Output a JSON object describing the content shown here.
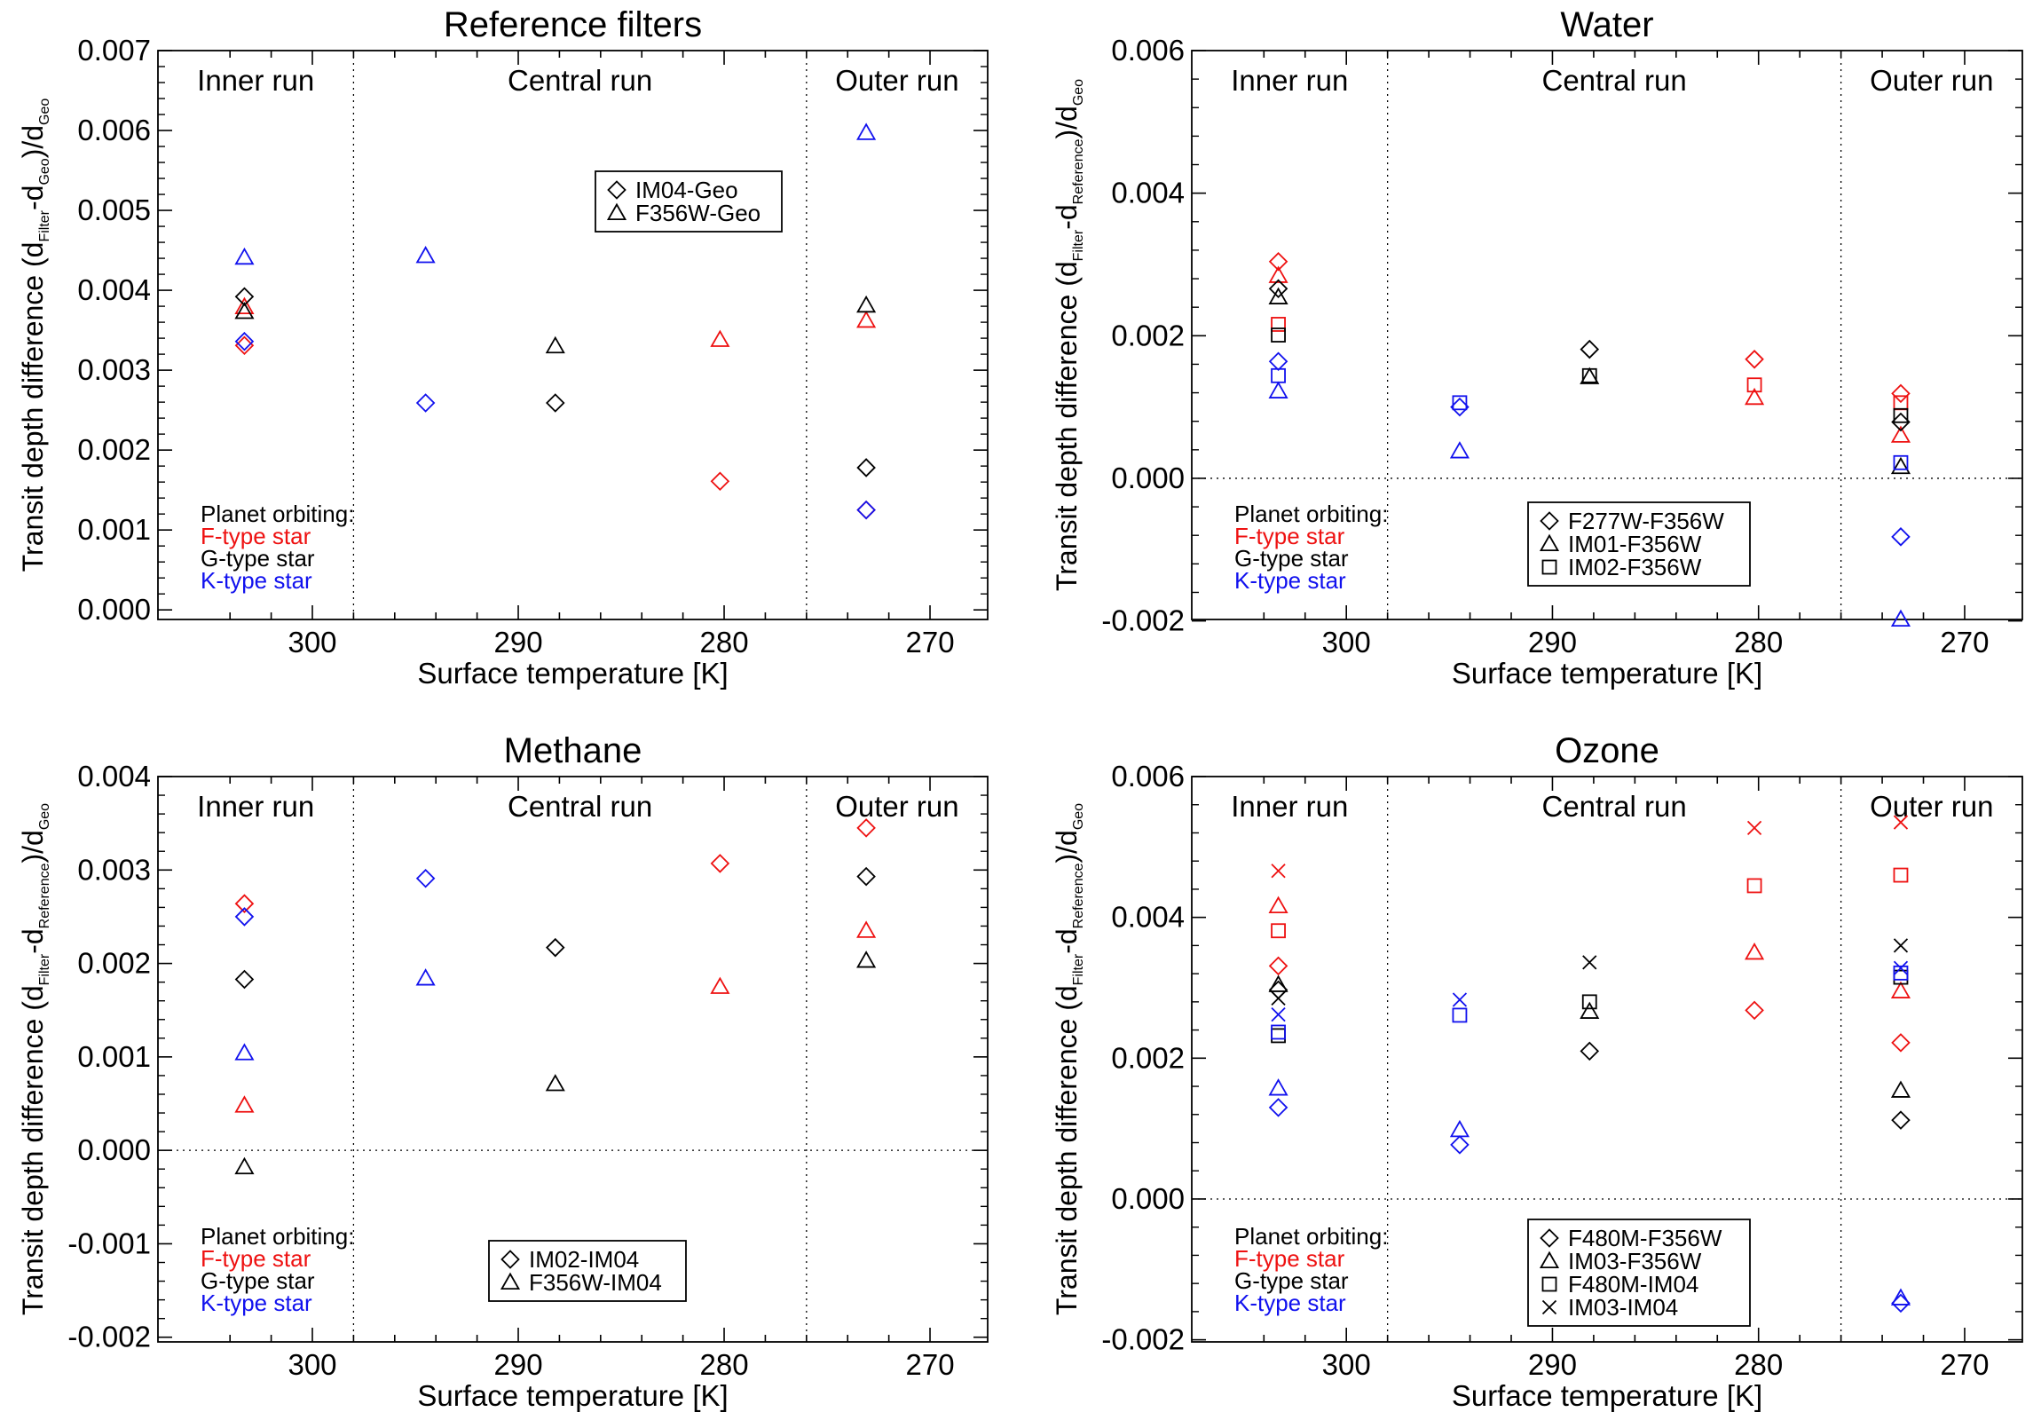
{
  "colors": {
    "F": "#ee1111",
    "G": "#000000",
    "K": "#1111ee"
  },
  "shared": {
    "xlabel": "Surface temperature [K]",
    "xlim": [
      307.5,
      267.2
    ],
    "xticks": [
      300,
      290,
      280,
      270
    ],
    "run_boundaries": [
      298,
      276
    ],
    "run_labels": [
      "Inner run",
      "Central run",
      "Outer run"
    ],
    "star_legend": {
      "title": "Planet orbiting:",
      "items": [
        {
          "label": "F-type star",
          "color": "#ee1111"
        },
        {
          "label": "G-type star",
          "color": "#000000"
        },
        {
          "label": "K-type star",
          "color": "#1111ee"
        }
      ]
    }
  },
  "chart_data": [
    {
      "type": "scatter",
      "title": "Reference filters",
      "ylabel": {
        "prefix": "Transit depth difference (d",
        "sub1": "Filter",
        "mid": "-d",
        "sub2": "Geo",
        "close": ")/d",
        "sub3": "Geo"
      },
      "ylim": [
        -0.00012,
        0.007
      ],
      "yticks": [
        "0.000",
        "0.001",
        "0.002",
        "0.003",
        "0.004",
        "0.005",
        "0.006",
        "0.007"
      ],
      "zero_line": false,
      "marker_legend": [
        {
          "marker": "diamond",
          "label": "IM04-Geo"
        },
        {
          "marker": "triangle",
          "label": "F356W-Geo"
        }
      ],
      "points": [
        {
          "x": 303.3,
          "y": 0.00331,
          "marker": "diamond",
          "star": "F"
        },
        {
          "x": 303.3,
          "y": 0.00379,
          "marker": "triangle",
          "star": "F"
        },
        {
          "x": 303.3,
          "y": 0.00392,
          "marker": "diamond",
          "star": "G"
        },
        {
          "x": 303.3,
          "y": 0.00373,
          "marker": "triangle",
          "star": "G"
        },
        {
          "x": 303.3,
          "y": 0.00336,
          "marker": "diamond",
          "star": "K"
        },
        {
          "x": 303.3,
          "y": 0.00441,
          "marker": "triangle",
          "star": "K"
        },
        {
          "x": 294.5,
          "y": 0.00259,
          "marker": "diamond",
          "star": "K"
        },
        {
          "x": 294.5,
          "y": 0.00443,
          "marker": "triangle",
          "star": "K"
        },
        {
          "x": 288.2,
          "y": 0.00259,
          "marker": "diamond",
          "star": "G"
        },
        {
          "x": 288.2,
          "y": 0.0033,
          "marker": "triangle",
          "star": "G"
        },
        {
          "x": 280.2,
          "y": 0.00161,
          "marker": "diamond",
          "star": "F"
        },
        {
          "x": 280.2,
          "y": 0.00338,
          "marker": "triangle",
          "star": "F"
        },
        {
          "x": 273.1,
          "y": 0.00125,
          "marker": "diamond",
          "star": "F"
        },
        {
          "x": 273.1,
          "y": 0.00362,
          "marker": "triangle",
          "star": "F"
        },
        {
          "x": 273.1,
          "y": 0.00178,
          "marker": "diamond",
          "star": "G"
        },
        {
          "x": 273.1,
          "y": 0.00381,
          "marker": "triangle",
          "star": "G"
        },
        {
          "x": 273.1,
          "y": 0.00125,
          "marker": "diamond",
          "star": "K"
        },
        {
          "x": 273.1,
          "y": 0.00597,
          "marker": "triangle",
          "star": "K"
        }
      ]
    },
    {
      "type": "scatter",
      "title": "Water",
      "ylabel": {
        "prefix": "Transit depth difference (d",
        "sub1": "Filter",
        "mid": "-d",
        "sub2": "Reference",
        "close": ")/d",
        "sub3": "Geo"
      },
      "ylim": [
        -0.00198,
        0.006
      ],
      "yticks": [
        "-0.002",
        "0.000",
        "0.002",
        "0.004",
        "0.006"
      ],
      "zero_line": true,
      "marker_legend": [
        {
          "marker": "diamond",
          "label": "F277W-F356W"
        },
        {
          "marker": "triangle",
          "label": "IM01-F356W"
        },
        {
          "marker": "square",
          "label": "IM02-F356W"
        }
      ],
      "points": [
        {
          "x": 303.3,
          "y": 0.00304,
          "marker": "diamond",
          "star": "F"
        },
        {
          "x": 303.3,
          "y": 0.00284,
          "marker": "triangle",
          "star": "F"
        },
        {
          "x": 303.3,
          "y": 0.00216,
          "marker": "square",
          "star": "F"
        },
        {
          "x": 303.3,
          "y": 0.00266,
          "marker": "diamond",
          "star": "G"
        },
        {
          "x": 303.3,
          "y": 0.00254,
          "marker": "triangle",
          "star": "G"
        },
        {
          "x": 303.3,
          "y": 0.00201,
          "marker": "square",
          "star": "G"
        },
        {
          "x": 303.3,
          "y": 0.00164,
          "marker": "diamond",
          "star": "K"
        },
        {
          "x": 303.3,
          "y": 0.00122,
          "marker": "triangle",
          "star": "K"
        },
        {
          "x": 303.3,
          "y": 0.00144,
          "marker": "square",
          "star": "K"
        },
        {
          "x": 294.5,
          "y": 0.001,
          "marker": "diamond",
          "star": "K"
        },
        {
          "x": 294.5,
          "y": 0.00038,
          "marker": "triangle",
          "star": "K"
        },
        {
          "x": 294.5,
          "y": 0.00106,
          "marker": "square",
          "star": "K"
        },
        {
          "x": 288.2,
          "y": 0.00181,
          "marker": "diamond",
          "star": "G"
        },
        {
          "x": 288.2,
          "y": 0.00142,
          "marker": "triangle",
          "star": "G"
        },
        {
          "x": 288.2,
          "y": 0.00144,
          "marker": "square",
          "star": "G"
        },
        {
          "x": 280.2,
          "y": 0.00167,
          "marker": "diamond",
          "star": "F"
        },
        {
          "x": 280.2,
          "y": 0.00113,
          "marker": "triangle",
          "star": "F"
        },
        {
          "x": 280.2,
          "y": 0.00131,
          "marker": "square",
          "star": "F"
        },
        {
          "x": 273.1,
          "y": 0.00119,
          "marker": "diamond",
          "star": "F"
        },
        {
          "x": 273.1,
          "y": 0.0006,
          "marker": "triangle",
          "star": "F"
        },
        {
          "x": 273.1,
          "y": 0.00106,
          "marker": "square",
          "star": "F"
        },
        {
          "x": 273.1,
          "y": 0.00079,
          "marker": "diamond",
          "star": "G"
        },
        {
          "x": 273.1,
          "y": 0.00016,
          "marker": "triangle",
          "star": "G"
        },
        {
          "x": 273.1,
          "y": 0.00088,
          "marker": "square",
          "star": "G"
        },
        {
          "x": 273.1,
          "y": -0.00082,
          "marker": "diamond",
          "star": "K"
        },
        {
          "x": 273.1,
          "y": -0.00198,
          "marker": "triangle",
          "star": "K"
        },
        {
          "x": 273.1,
          "y": 0.00022,
          "marker": "square",
          "star": "K"
        }
      ]
    },
    {
      "type": "scatter",
      "title": "Methane",
      "ylabel": {
        "prefix": "Transit depth difference (d",
        "sub1": "Filter",
        "mid": "-d",
        "sub2": "Reference",
        "close": ")/d",
        "sub3": "Geo"
      },
      "ylim": [
        -0.00205,
        0.004
      ],
      "yticks": [
        "-0.002",
        "-0.001",
        "0.000",
        "0.001",
        "0.002",
        "0.003",
        "0.004"
      ],
      "zero_line": true,
      "marker_legend": [
        {
          "marker": "diamond",
          "label": "IM02-IM04"
        },
        {
          "marker": "triangle",
          "label": "F356W-IM04"
        }
      ],
      "points": [
        {
          "x": 303.3,
          "y": 0.00264,
          "marker": "diamond",
          "star": "F"
        },
        {
          "x": 303.3,
          "y": 0.00048,
          "marker": "triangle",
          "star": "F"
        },
        {
          "x": 303.3,
          "y": 0.00183,
          "marker": "diamond",
          "star": "G"
        },
        {
          "x": 303.3,
          "y": -0.00018,
          "marker": "triangle",
          "star": "G"
        },
        {
          "x": 303.3,
          "y": 0.0025,
          "marker": "diamond",
          "star": "K"
        },
        {
          "x": 303.3,
          "y": 0.00104,
          "marker": "triangle",
          "star": "K"
        },
        {
          "x": 294.5,
          "y": 0.00291,
          "marker": "diamond",
          "star": "K"
        },
        {
          "x": 294.5,
          "y": 0.00184,
          "marker": "triangle",
          "star": "K"
        },
        {
          "x": 288.2,
          "y": 0.00217,
          "marker": "diamond",
          "star": "G"
        },
        {
          "x": 288.2,
          "y": 0.00071,
          "marker": "triangle",
          "star": "G"
        },
        {
          "x": 280.2,
          "y": 0.00307,
          "marker": "diamond",
          "star": "F"
        },
        {
          "x": 280.2,
          "y": 0.00175,
          "marker": "triangle",
          "star": "F"
        },
        {
          "x": 273.1,
          "y": 0.00345,
          "marker": "diamond",
          "star": "F"
        },
        {
          "x": 273.1,
          "y": 0.00235,
          "marker": "triangle",
          "star": "F"
        },
        {
          "x": 273.1,
          "y": 0.00293,
          "marker": "diamond",
          "star": "G"
        },
        {
          "x": 273.1,
          "y": 0.00203,
          "marker": "triangle",
          "star": "G"
        }
      ]
    },
    {
      "type": "scatter",
      "title": "Ozone",
      "ylabel": {
        "prefix": "Transit depth difference (d",
        "sub1": "Filter",
        "mid": "-d",
        "sub2": "Reference",
        "close": ")/d",
        "sub3": "Geo"
      },
      "ylim": [
        -0.00203,
        0.006
      ],
      "yticks": [
        "-0.002",
        "0.000",
        "0.002",
        "0.004",
        "0.006"
      ],
      "zero_line": true,
      "marker_legend": [
        {
          "marker": "diamond",
          "label": "F480M-F356W"
        },
        {
          "marker": "triangle",
          "label": "IM03-F356W"
        },
        {
          "marker": "square",
          "label": "F480M-IM04"
        },
        {
          "marker": "cross",
          "label": "IM03-IM04"
        }
      ],
      "points": [
        {
          "x": 303.3,
          "y": 0.00331,
          "marker": "diamond",
          "star": "F"
        },
        {
          "x": 303.3,
          "y": 0.00416,
          "marker": "triangle",
          "star": "F"
        },
        {
          "x": 303.3,
          "y": 0.00381,
          "marker": "square",
          "star": "F"
        },
        {
          "x": 303.3,
          "y": 0.00466,
          "marker": "cross",
          "star": "F"
        },
        {
          "x": 303.3,
          "y": 0.00297,
          "marker": "diamond",
          "star": "G"
        },
        {
          "x": 303.3,
          "y": 0.00304,
          "marker": "triangle",
          "star": "G"
        },
        {
          "x": 303.3,
          "y": 0.00232,
          "marker": "square",
          "star": "G"
        },
        {
          "x": 303.3,
          "y": 0.00285,
          "marker": "cross",
          "star": "G"
        },
        {
          "x": 303.3,
          "y": 0.0013,
          "marker": "diamond",
          "star": "K"
        },
        {
          "x": 303.3,
          "y": 0.00157,
          "marker": "triangle",
          "star": "K"
        },
        {
          "x": 303.3,
          "y": 0.00237,
          "marker": "square",
          "star": "K"
        },
        {
          "x": 303.3,
          "y": 0.00262,
          "marker": "cross",
          "star": "K"
        },
        {
          "x": 294.5,
          "y": 0.00077,
          "marker": "diamond",
          "star": "K"
        },
        {
          "x": 294.5,
          "y": 0.00098,
          "marker": "triangle",
          "star": "K"
        },
        {
          "x": 294.5,
          "y": 0.00261,
          "marker": "square",
          "star": "K"
        },
        {
          "x": 294.5,
          "y": 0.00283,
          "marker": "cross",
          "star": "K"
        },
        {
          "x": 288.2,
          "y": 0.0021,
          "marker": "diamond",
          "star": "G"
        },
        {
          "x": 288.2,
          "y": 0.00266,
          "marker": "triangle",
          "star": "G"
        },
        {
          "x": 288.2,
          "y": 0.0028,
          "marker": "square",
          "star": "G"
        },
        {
          "x": 288.2,
          "y": 0.00336,
          "marker": "cross",
          "star": "G"
        },
        {
          "x": 280.2,
          "y": 0.00268,
          "marker": "diamond",
          "star": "F"
        },
        {
          "x": 280.2,
          "y": 0.0035,
          "marker": "triangle",
          "star": "F"
        },
        {
          "x": 280.2,
          "y": 0.00445,
          "marker": "square",
          "star": "F"
        },
        {
          "x": 280.2,
          "y": 0.00527,
          "marker": "cross",
          "star": "F"
        },
        {
          "x": 273.1,
          "y": 0.00222,
          "marker": "diamond",
          "star": "F"
        },
        {
          "x": 273.1,
          "y": 0.00295,
          "marker": "triangle",
          "star": "F"
        },
        {
          "x": 273.1,
          "y": 0.0046,
          "marker": "square",
          "star": "F"
        },
        {
          "x": 273.1,
          "y": 0.00535,
          "marker": "cross",
          "star": "F"
        },
        {
          "x": 273.1,
          "y": 0.00112,
          "marker": "diamond",
          "star": "G"
        },
        {
          "x": 273.1,
          "y": 0.00154,
          "marker": "triangle",
          "star": "G"
        },
        {
          "x": 273.1,
          "y": 0.00315,
          "marker": "square",
          "star": "G"
        },
        {
          "x": 273.1,
          "y": 0.0036,
          "marker": "cross",
          "star": "G"
        },
        {
          "x": 273.1,
          "y": -0.00148,
          "marker": "diamond",
          "star": "K"
        },
        {
          "x": 273.1,
          "y": -0.00141,
          "marker": "triangle",
          "star": "K"
        },
        {
          "x": 273.1,
          "y": 0.00321,
          "marker": "square",
          "star": "K"
        },
        {
          "x": 273.1,
          "y": 0.00328,
          "marker": "cross",
          "star": "K"
        }
      ]
    }
  ]
}
